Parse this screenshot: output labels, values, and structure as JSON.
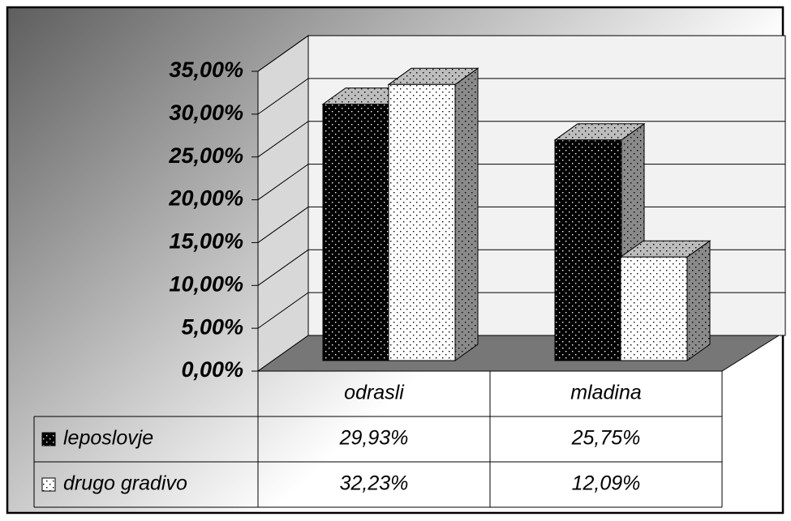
{
  "chart_data": {
    "type": "bar3d",
    "categories": [
      "odrasli",
      "mladina"
    ],
    "series": [
      {
        "name": "leposlovje",
        "color": "#000000",
        "values": [
          29.93,
          25.75
        ],
        "value_labels": [
          "29,93%",
          "25,75%"
        ]
      },
      {
        "name": "drugo gradivo",
        "color": "#ffffff",
        "values": [
          32.23,
          12.09
        ],
        "value_labels": [
          "32,23%",
          "12,09%"
        ]
      }
    ],
    "ylim": [
      0,
      35
    ],
    "yticks": [
      {
        "value": 0,
        "label": "0,00%"
      },
      {
        "value": 5,
        "label": "5,00%"
      },
      {
        "value": 10,
        "label": "10,00%"
      },
      {
        "value": 15,
        "label": "15,00%"
      },
      {
        "value": 20,
        "label": "20,00%"
      },
      {
        "value": 25,
        "label": "25,00%"
      },
      {
        "value": 30,
        "label": "30,00%"
      },
      {
        "value": 35,
        "label": "35,00%"
      }
    ],
    "grid": true
  }
}
